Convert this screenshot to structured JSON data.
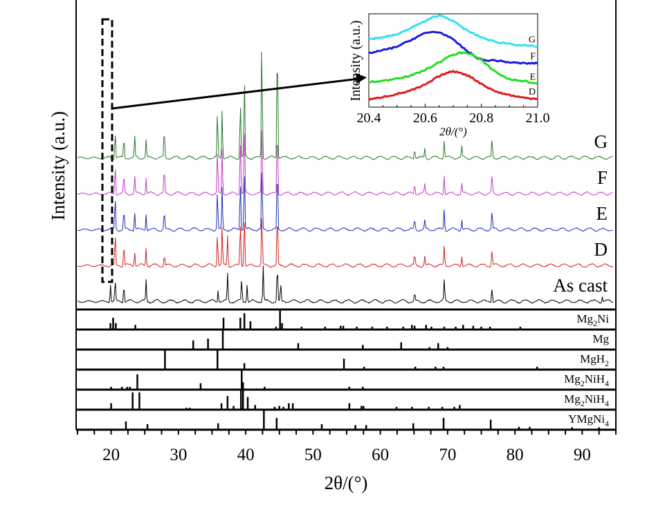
{
  "chart_data": {
    "type": "line",
    "title": "",
    "xlabel": "2θ/(°)",
    "ylabel": "Intensity (a.u.)",
    "xlim": [
      14.8,
      95
    ],
    "xticks": [
      20,
      30,
      40,
      50,
      60,
      70,
      80,
      90
    ],
    "minor_tick_step": 2.5,
    "grid": false,
    "series": [
      {
        "name": "As cast",
        "color": "#000000",
        "offset": 0,
        "peaks": [
          [
            19.9,
            0.5
          ],
          [
            20.6,
            0.6
          ],
          [
            21.9,
            0.55
          ],
          [
            25.2,
            0.6
          ],
          [
            35.9,
            0.35
          ],
          [
            37.3,
            0.8
          ],
          [
            39.4,
            0.65
          ],
          [
            40.2,
            0.5
          ],
          [
            42.6,
            1.0
          ],
          [
            44.7,
            1.1
          ],
          [
            45.2,
            0.5
          ],
          [
            65.1,
            0.25
          ],
          [
            69.5,
            0.6
          ],
          [
            76.6,
            0.45
          ],
          [
            93,
            0.15
          ]
        ]
      },
      {
        "name": "D",
        "color": "#d42020",
        "offset": 1,
        "peaks": [
          [
            20.6,
            0.9
          ],
          [
            21.9,
            0.65
          ],
          [
            23.5,
            0.4
          ],
          [
            25.2,
            0.5
          ],
          [
            27.9,
            0.35
          ],
          [
            35.8,
            1.0
          ],
          [
            36.5,
            1.1
          ],
          [
            37.3,
            0.9
          ],
          [
            39.2,
            1.3
          ],
          [
            39.8,
            1.5
          ],
          [
            42.4,
            1.6
          ],
          [
            44.7,
            1.6
          ],
          [
            65.1,
            0.3
          ],
          [
            66.6,
            0.25
          ],
          [
            69.5,
            0.55
          ],
          [
            72.1,
            0.3
          ],
          [
            76.6,
            0.5
          ]
        ]
      },
      {
        "name": "E",
        "color": "#1c2fb8",
        "offset": 2,
        "peaks": [
          [
            20.6,
            0.95
          ],
          [
            21.9,
            0.55
          ],
          [
            23.5,
            0.5
          ],
          [
            25.2,
            0.45
          ],
          [
            27.9,
            0.55
          ],
          [
            35.8,
            1.2
          ],
          [
            36.5,
            1.2
          ],
          [
            39.2,
            1.5
          ],
          [
            39.8,
            1.8
          ],
          [
            42.4,
            1.9
          ],
          [
            44.7,
            1.9
          ],
          [
            65.1,
            0.3
          ],
          [
            66.6,
            0.25
          ],
          [
            69.5,
            0.6
          ],
          [
            72.1,
            0.3
          ],
          [
            76.6,
            0.55
          ]
        ]
      },
      {
        "name": "F",
        "color": "#c43cc4",
        "offset": 3,
        "peaks": [
          [
            20.6,
            0.85
          ],
          [
            21.9,
            0.55
          ],
          [
            23.5,
            0.5
          ],
          [
            25.2,
            0.45
          ],
          [
            27.9,
            0.75
          ],
          [
            35.8,
            1.3
          ],
          [
            36.5,
            1.3
          ],
          [
            39.2,
            1.7
          ],
          [
            39.8,
            2.0
          ],
          [
            42.4,
            2.1
          ],
          [
            44.7,
            2.1
          ],
          [
            65.1,
            0.3
          ],
          [
            66.6,
            0.25
          ],
          [
            69.5,
            0.55
          ],
          [
            72.1,
            0.3
          ],
          [
            76.6,
            0.55
          ]
        ]
      },
      {
        "name": "G",
        "color": "#2a7a2a",
        "offset": 4,
        "peaks": [
          [
            20.6,
            0.8
          ],
          [
            21.9,
            0.6
          ],
          [
            23.5,
            0.6
          ],
          [
            25.2,
            0.5
          ],
          [
            27.9,
            0.85
          ],
          [
            35.8,
            1.35
          ],
          [
            36.5,
            1.4
          ],
          [
            39.2,
            1.7
          ],
          [
            39.8,
            2.4
          ],
          [
            42.4,
            3.6
          ],
          [
            44.7,
            3.7
          ],
          [
            65.1,
            0.3
          ],
          [
            66.6,
            0.25
          ],
          [
            69.5,
            0.5
          ],
          [
            72.1,
            0.3
          ],
          [
            76.6,
            0.55
          ]
        ]
      }
    ],
    "reference_phases": [
      {
        "name": "Mg2Ni",
        "label_main": "Mg",
        "label_sub1": "2",
        "label_rest": "Ni",
        "label_sub2": "",
        "peaks": [
          [
            19.9,
            0.3
          ],
          [
            20.3,
            0.6
          ],
          [
            20.7,
            0.3
          ],
          [
            23.6,
            0.2
          ],
          [
            36.7,
            0.6
          ],
          [
            39.2,
            0.6
          ],
          [
            39.8,
            0.85
          ],
          [
            40.7,
            0.4
          ],
          [
            44.5,
            0.1
          ],
          [
            45.1,
            1.0
          ],
          [
            45.4,
            0.3
          ],
          [
            48.3,
            0.1
          ],
          [
            51.8,
            0.1
          ],
          [
            54.1,
            0.15
          ],
          [
            54.5,
            0.15
          ],
          [
            56.5,
            0.1
          ],
          [
            58.8,
            0.1
          ],
          [
            61,
            0.1
          ],
          [
            63.4,
            0.1
          ],
          [
            64.7,
            0.2
          ],
          [
            65.1,
            0.15
          ],
          [
            66.8,
            0.2
          ],
          [
            67.6,
            0.1
          ],
          [
            69.5,
            0.1
          ],
          [
            71.2,
            0.1
          ],
          [
            72.3,
            0.2
          ],
          [
            73.8,
            0.15
          ],
          [
            75,
            0.1
          ],
          [
            76.3,
            0.1
          ],
          [
            80.8,
            0.1
          ]
        ]
      },
      {
        "name": "Mg",
        "label_main": "Mg",
        "label_sub1": "",
        "label_rest": "",
        "label_sub2": "",
        "peaks": [
          [
            32.2,
            0.45
          ],
          [
            34.4,
            0.55
          ],
          [
            36.6,
            1.0
          ],
          [
            47.8,
            0.3
          ],
          [
            57.4,
            0.2
          ],
          [
            63.1,
            0.35
          ],
          [
            67.3,
            0.08
          ],
          [
            68.6,
            0.3
          ],
          [
            70.0,
            0.08
          ]
        ]
      },
      {
        "name": "MgH2",
        "label_main": "MgH",
        "label_sub1": "",
        "label_rest": "",
        "label_sub2": "2",
        "peaks": [
          [
            28.0,
            1.0
          ],
          [
            35.8,
            1.0
          ],
          [
            39.8,
            0.3
          ],
          [
            54.6,
            0.55
          ],
          [
            57.6,
            0.1
          ],
          [
            65.2,
            0.1
          ],
          [
            68.2,
            0.1
          ],
          [
            69.4,
            0.1
          ],
          [
            83.3,
            0.1
          ]
        ]
      },
      {
        "name": "Mg2NiH4",
        "label_main": "Mg",
        "label_sub1": "2",
        "label_rest": "NiH",
        "label_sub2": "4",
        "peaks": [
          [
            20.0,
            0.1
          ],
          [
            21.6,
            0.1
          ],
          [
            22.4,
            0.1
          ],
          [
            22.8,
            0.1
          ],
          [
            23.9,
            0.8
          ],
          [
            33.3,
            0.3
          ],
          [
            39.4,
            1.0
          ],
          [
            39.6,
            0.35
          ],
          [
            42.8,
            0.1
          ],
          [
            55.4,
            0.1
          ],
          [
            57.4,
            0.1
          ]
        ]
      },
      {
        "name": "Mg2NiH4",
        "label_main": "Mg",
        "label_sub1": "2",
        "label_rest": "NiH",
        "label_sub2": "4",
        "peaks": [
          [
            20.0,
            0.3
          ],
          [
            23.2,
            0.9
          ],
          [
            24.2,
            0.9
          ],
          [
            31.2,
            0.05
          ],
          [
            31.7,
            0.05
          ],
          [
            36.4,
            0.3
          ],
          [
            37.3,
            0.7
          ],
          [
            38.2,
            0.15
          ],
          [
            39.3,
            1.0
          ],
          [
            39.6,
            1.0
          ],
          [
            40.3,
            0.65
          ],
          [
            41.4,
            0.2
          ],
          [
            44.3,
            0.1
          ],
          [
            45.0,
            0.15
          ],
          [
            45.6,
            0.1
          ],
          [
            46.4,
            0.3
          ],
          [
            47.0,
            0.3
          ],
          [
            55.4,
            0.3
          ],
          [
            57.2,
            0.15
          ],
          [
            57.5,
            0.15
          ],
          [
            62.4,
            0.1
          ],
          [
            64.7,
            0.1
          ],
          [
            67.2,
            0.1
          ],
          [
            69.2,
            0.1
          ],
          [
            71.0,
            0.1
          ],
          [
            71.8,
            0.2
          ]
        ]
      },
      {
        "name": "YMgNi4",
        "label_main": "YMgNi",
        "label_sub1": "",
        "label_rest": "",
        "label_sub2": "4",
        "peaks": [
          [
            22.2,
            0.4
          ],
          [
            25.4,
            0.25
          ],
          [
            35.9,
            0.3
          ],
          [
            42.7,
            1.0
          ],
          [
            44.6,
            0.6
          ],
          [
            51.3,
            0.25
          ],
          [
            56.3,
            0.2
          ],
          [
            57.9,
            0.2
          ],
          [
            64.9,
            0.3
          ],
          [
            69.4,
            0.6
          ],
          [
            76.4,
            0.5
          ],
          [
            80.6,
            0.1
          ],
          [
            82.2,
            0.1
          ],
          [
            88.5,
            0.08
          ],
          [
            92.5,
            0.08
          ]
        ]
      }
    ],
    "inset": {
      "xlabel": "2θ/(°)",
      "ylabel": "Intensity (a.u.)",
      "xlim": [
        20.4,
        21.0
      ],
      "ylim": [
        0,
        1
      ],
      "xticks": [
        "20.4",
        "20.6",
        "20.8",
        "21.0"
      ],
      "series": [
        {
          "name": "G",
          "color": "#33e0f0",
          "x": [
            20.4,
            20.45,
            20.5,
            20.55,
            20.6,
            20.65,
            20.7,
            20.75,
            20.8,
            20.85,
            20.9,
            20.95,
            21.0
          ],
          "y": [
            0.73,
            0.75,
            0.78,
            0.85,
            0.92,
            0.98,
            0.92,
            0.82,
            0.75,
            0.7,
            0.68,
            0.66,
            0.65
          ]
        },
        {
          "name": "F",
          "color": "#1a1ae0",
          "x": [
            20.4,
            20.45,
            20.5,
            20.55,
            20.6,
            20.65,
            20.7,
            20.75,
            20.8,
            20.85,
            20.9,
            20.95,
            21.0
          ],
          "y": [
            0.58,
            0.61,
            0.65,
            0.72,
            0.79,
            0.8,
            0.72,
            0.6,
            0.51,
            0.5,
            0.48,
            0.47,
            0.47
          ]
        },
        {
          "name": "E",
          "color": "#22dd22",
          "x": [
            20.4,
            20.45,
            20.5,
            20.55,
            20.6,
            20.65,
            20.7,
            20.75,
            20.8,
            20.85,
            20.9,
            20.95,
            21.0
          ],
          "y": [
            0.27,
            0.28,
            0.31,
            0.34,
            0.4,
            0.48,
            0.56,
            0.58,
            0.5,
            0.38,
            0.3,
            0.28,
            0.25
          ]
        },
        {
          "name": "D",
          "color": "#e01a1a",
          "x": [
            20.4,
            20.45,
            20.5,
            20.55,
            20.6,
            20.65,
            20.7,
            20.75,
            20.8,
            20.85,
            20.9,
            20.95,
            21.0
          ],
          "y": [
            0.08,
            0.11,
            0.14,
            0.18,
            0.24,
            0.33,
            0.38,
            0.34,
            0.25,
            0.17,
            0.13,
            0.1,
            0.09
          ]
        }
      ]
    }
  }
}
